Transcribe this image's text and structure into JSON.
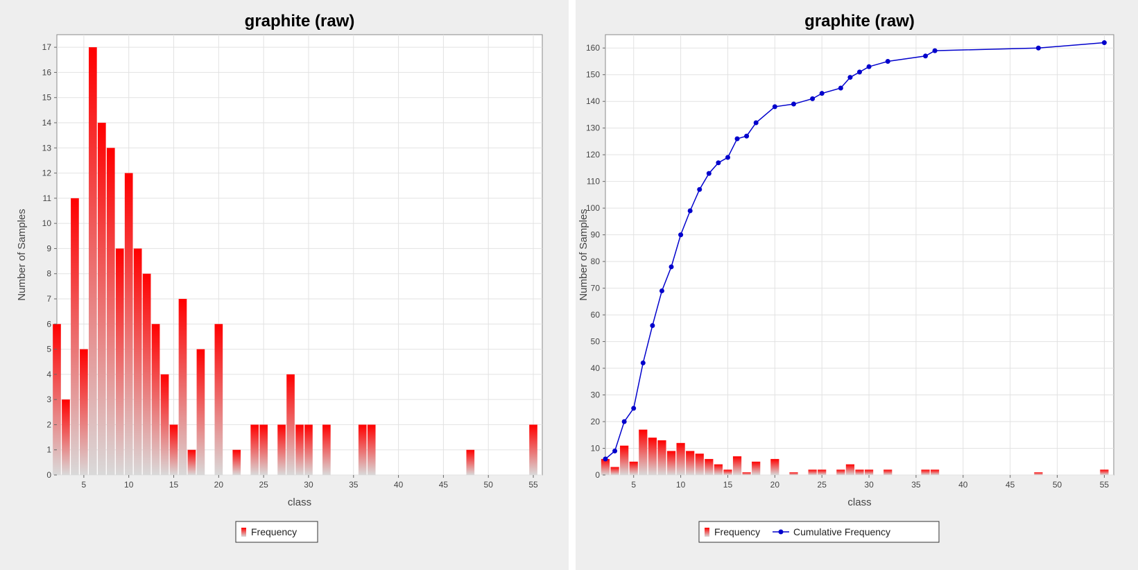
{
  "chart_data": [
    {
      "type": "bar",
      "title": "graphite (raw)",
      "xlabel": "class",
      "ylabel": "Number of Samples",
      "xlim": [
        2,
        56
      ],
      "ylim": [
        0,
        17.5
      ],
      "xticks": [
        5,
        10,
        15,
        20,
        25,
        30,
        35,
        40,
        45,
        50,
        55
      ],
      "yticks": [
        0,
        1,
        2,
        3,
        4,
        5,
        6,
        7,
        8,
        9,
        10,
        11,
        12,
        13,
        14,
        15,
        16,
        17
      ],
      "grid": true,
      "legend": {
        "position": "bottom-center",
        "entries": [
          "Frequency"
        ]
      },
      "colors": {
        "bar_top": "#ff0000",
        "bar_bottom": "#d9d9d9"
      },
      "series": [
        {
          "name": "Frequency",
          "x": [
            2,
            3,
            4,
            5,
            6,
            7,
            8,
            9,
            10,
            11,
            12,
            13,
            14,
            15,
            16,
            17,
            18,
            20,
            22,
            24,
            25,
            27,
            28,
            29,
            30,
            32,
            36,
            37,
            48,
            55
          ],
          "values": [
            6,
            3,
            11,
            5,
            17,
            14,
            13,
            9,
            12,
            9,
            8,
            6,
            4,
            2,
            7,
            1,
            5,
            6,
            1,
            2,
            2,
            2,
            4,
            2,
            2,
            2,
            2,
            2,
            1,
            2
          ]
        }
      ]
    },
    {
      "type": "bar+line",
      "title": "graphite (raw)",
      "xlabel": "class",
      "ylabel": "Number of Samples",
      "xlim": [
        2,
        56
      ],
      "ylim": [
        0,
        165
      ],
      "xticks": [
        5,
        10,
        15,
        20,
        25,
        30,
        35,
        40,
        45,
        50,
        55
      ],
      "yticks": [
        0,
        10,
        20,
        30,
        40,
        50,
        60,
        70,
        80,
        90,
        100,
        110,
        120,
        130,
        140,
        150,
        160
      ],
      "grid": true,
      "legend": {
        "position": "bottom-center",
        "entries": [
          "Frequency",
          "Cumulative Frequency"
        ]
      },
      "colors": {
        "bar_top": "#ff0000",
        "bar_bottom": "#d9d9d9",
        "line": "#0000cc"
      },
      "series": [
        {
          "name": "Frequency",
          "x": [
            2,
            3,
            4,
            5,
            6,
            7,
            8,
            9,
            10,
            11,
            12,
            13,
            14,
            15,
            16,
            17,
            18,
            20,
            22,
            24,
            25,
            27,
            28,
            29,
            30,
            32,
            36,
            37,
            48,
            55
          ],
          "values": [
            6,
            3,
            11,
            5,
            17,
            14,
            13,
            9,
            12,
            9,
            8,
            6,
            4,
            2,
            7,
            1,
            5,
            6,
            1,
            2,
            2,
            2,
            4,
            2,
            2,
            2,
            2,
            2,
            1,
            2
          ]
        },
        {
          "name": "Cumulative Frequency",
          "x": [
            2,
            3,
            4,
            5,
            6,
            7,
            8,
            9,
            10,
            11,
            12,
            13,
            14,
            15,
            16,
            17,
            18,
            20,
            22,
            24,
            25,
            27,
            28,
            29,
            30,
            32,
            36,
            37,
            48,
            55
          ],
          "values": [
            6,
            9,
            20,
            25,
            42,
            56,
            69,
            78,
            90,
            99,
            107,
            113,
            117,
            119,
            126,
            127,
            132,
            138,
            139,
            141,
            143,
            145,
            149,
            151,
            153,
            155,
            157,
            159,
            160,
            162
          ]
        }
      ]
    }
  ]
}
